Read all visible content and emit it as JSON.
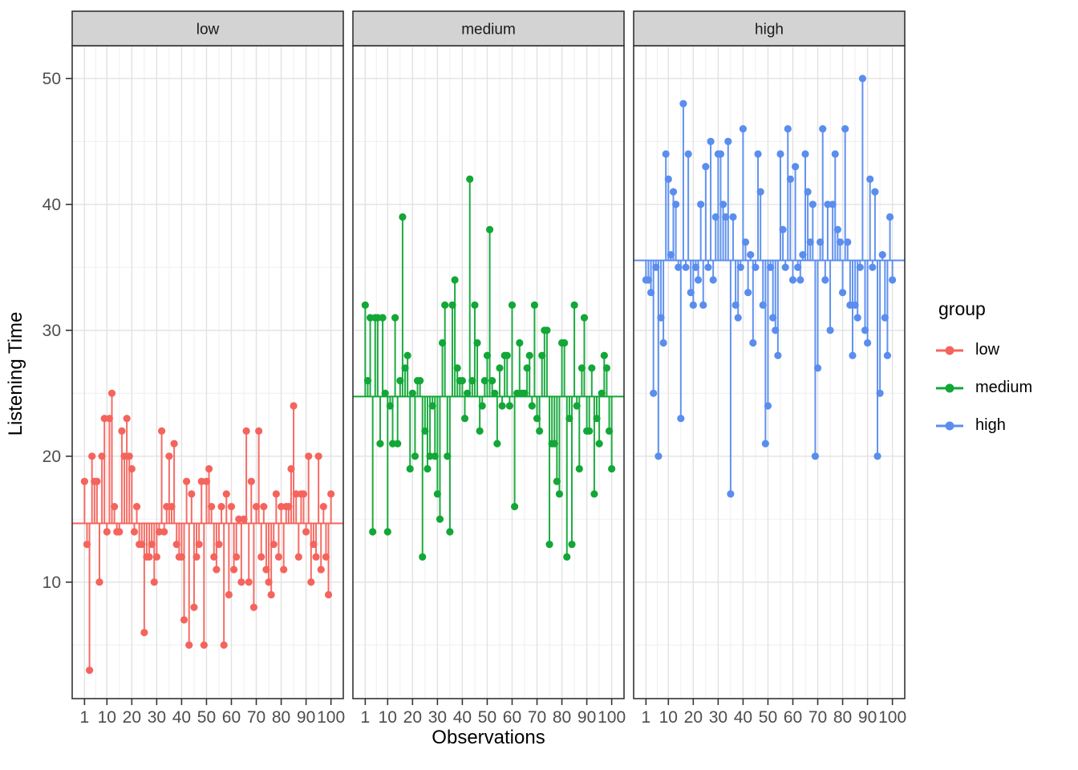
{
  "page": {
    "background": "#FFFFFF"
  },
  "axes": {
    "x_title": "Observations",
    "y_title": "Listening Time",
    "x_tick_labels": [
      "1",
      "10",
      "20",
      "30",
      "40",
      "50",
      "60",
      "70",
      "80",
      "90",
      "100"
    ],
    "y_tick_labels": [
      "10",
      "20",
      "30",
      "40",
      "50"
    ]
  },
  "legend": {
    "title": "group",
    "entries": [
      {
        "label": "low",
        "color": "#F4645D"
      },
      {
        "label": "medium",
        "color": "#12A737"
      },
      {
        "label": "high",
        "color": "#5A8DEE"
      }
    ]
  },
  "style": {
    "strip_background": "#D3D3D3",
    "strip_text_color": "#1A1A1A",
    "panel_border_color": "#333333",
    "grid_major_color": "#E2E2E2",
    "grid_minor_color": "#EFEFEF",
    "tick_mark_color": "#333333",
    "tick_label_color": "#4D4D4D"
  },
  "chart_data": {
    "type": "scatter",
    "subtype": "faceted lollipop / stem plot (stems drawn from each group mean line to each observation)",
    "title": "",
    "xlabel": "Observations",
    "ylabel": "Listening Time",
    "x_description": "observation index 1..100 in each facet",
    "x_ticks": [
      1,
      10,
      20,
      30,
      40,
      50,
      60,
      70,
      80,
      90,
      100
    ],
    "y_ticks": [
      10,
      20,
      30,
      40,
      50
    ],
    "xlim": [
      -3.95,
      104.95
    ],
    "ylim": [
      0.75,
      52.6
    ],
    "grid": true,
    "legend_position": "right",
    "stem_baseline": "group_mean",
    "facets": [
      {
        "label": "low",
        "color": "#F4645D",
        "group_mean": 14.6,
        "values": [
          18,
          13,
          3,
          20,
          18,
          18,
          10,
          20,
          23,
          14,
          23,
          25,
          16,
          14,
          14,
          22,
          20,
          23,
          20,
          19,
          14,
          16,
          13,
          13,
          6,
          12,
          12,
          13,
          10,
          12,
          14,
          22,
          14,
          16,
          20,
          16,
          21,
          13,
          12,
          12,
          7,
          18,
          5,
          17,
          8,
          12,
          13,
          18,
          5,
          18,
          19,
          16,
          12,
          11,
          13,
          16,
          5,
          17,
          9,
          16,
          11,
          12,
          15,
          10,
          15,
          22,
          10,
          18,
          8,
          16,
          22,
          12,
          16,
          11,
          10,
          9,
          13,
          17,
          12,
          16,
          11,
          16,
          16,
          19,
          24,
          17,
          12,
          17,
          17,
          14,
          20,
          10,
          13,
          12,
          20,
          11,
          16,
          12,
          9,
          17
        ]
      },
      {
        "label": "medium",
        "color": "#12A737",
        "group_mean": 24.7,
        "values": [
          32,
          26,
          31,
          14,
          31,
          31,
          21,
          31,
          25,
          14,
          24,
          21,
          31,
          21,
          26,
          39,
          27,
          28,
          19,
          25,
          20,
          26,
          26,
          12,
          22,
          19,
          20,
          24,
          20,
          17,
          15,
          29,
          32,
          20,
          14,
          32,
          34,
          27,
          26,
          26,
          23,
          25,
          42,
          26,
          32,
          29,
          22,
          24,
          26,
          28,
          38,
          26,
          25,
          21,
          27,
          24,
          28,
          28,
          24,
          32,
          16,
          25,
          29,
          25,
          25,
          27,
          28,
          24,
          32,
          23,
          22,
          28,
          30,
          30,
          13,
          21,
          21,
          18,
          17,
          29,
          29,
          12,
          23,
          13,
          32,
          24,
          19,
          27,
          31,
          22,
          22,
          27,
          17,
          23,
          21,
          25,
          28,
          27,
          22,
          19
        ]
      },
      {
        "label": "high",
        "color": "#5A8DEE",
        "group_mean": 35.5,
        "values": [
          34,
          34,
          33,
          25,
          35,
          20,
          31,
          29,
          44,
          42,
          36,
          41,
          40,
          35,
          23,
          48,
          35,
          44,
          33,
          32,
          35,
          34,
          40,
          32,
          43,
          35,
          45,
          34,
          39,
          44,
          44,
          40,
          39,
          45,
          17,
          39,
          32,
          31,
          35,
          46,
          37,
          33,
          36,
          29,
          35,
          44,
          41,
          32,
          21,
          24,
          35,
          31,
          30,
          28,
          44,
          38,
          35,
          46,
          42,
          34,
          43,
          35,
          34,
          36,
          44,
          41,
          37,
          40,
          20,
          27,
          37,
          46,
          34,
          40,
          30,
          40,
          44,
          38,
          37,
          33,
          46,
          37,
          32,
          28,
          32,
          31,
          35,
          50,
          30,
          29,
          42,
          35,
          41,
          20,
          25,
          36,
          31,
          28,
          39,
          34
        ]
      }
    ]
  }
}
